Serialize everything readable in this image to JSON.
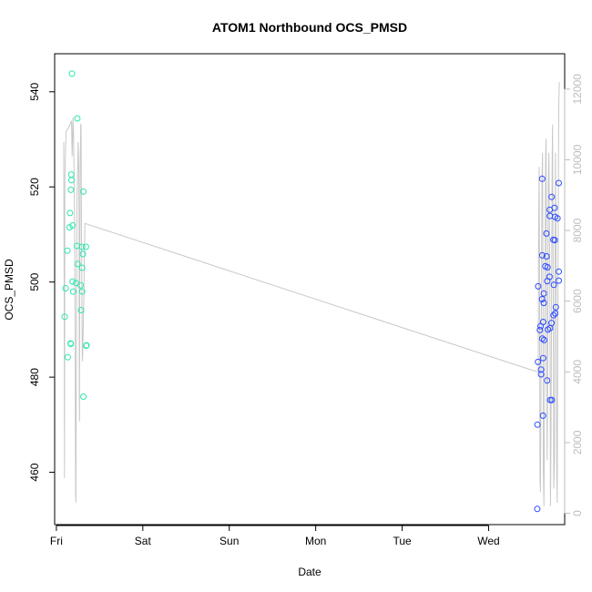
{
  "chart_data": {
    "type": "scatter",
    "title": "ATOM1 Northbound OCS_PMSD",
    "xlabel": "Date",
    "ylabel": "OCS_PMSD",
    "x_ticks": [
      "Fri",
      "Sat",
      "Sun",
      "Mon",
      "Tue",
      "Wed"
    ],
    "x_range_days": [
      -0.02,
      5.88
    ],
    "ylim": [
      449,
      548
    ],
    "y_ticks": [
      460,
      480,
      500,
      520,
      540
    ],
    "y2lim": [
      -320,
      13000
    ],
    "y2_ticks": [
      0,
      2000,
      4000,
      6000,
      8000,
      10000,
      12000
    ],
    "grid": false,
    "colors": {
      "series_fri": "#2ee6b0",
      "series_wed": "#2b4bff",
      "overlay": "#c8c8c8",
      "right_axis": "#bdbdbd"
    },
    "series": [
      {
        "points": [
          [
            0.18,
            543.8
          ],
          [
            0.242,
            534.4
          ],
          [
            0.172,
            522.6
          ],
          [
            0.175,
            521.4
          ],
          [
            0.168,
            519.4
          ],
          [
            0.313,
            519.0
          ],
          [
            0.188,
            511.9
          ],
          [
            0.158,
            514.5
          ],
          [
            0.152,
            511.5
          ],
          [
            0.237,
            507.6
          ],
          [
            0.342,
            507.4
          ],
          [
            0.298,
            507.4
          ],
          [
            0.128,
            506.6
          ],
          [
            0.308,
            505.9
          ],
          [
            0.247,
            503.8
          ],
          [
            0.297,
            503.0
          ],
          [
            0.188,
            500.1
          ],
          [
            0.281,
            499.3
          ],
          [
            0.227,
            499.8
          ],
          [
            0.194,
            498.0
          ],
          [
            0.108,
            498.7
          ],
          [
            0.298,
            498.0
          ],
          [
            0.286,
            494.1
          ],
          [
            0.096,
            492.7
          ],
          [
            0.166,
            487.0
          ],
          [
            0.164,
            487.1
          ],
          [
            0.349,
            486.7
          ],
          [
            0.346,
            486.6
          ],
          [
            0.132,
            484.2
          ],
          [
            0.313,
            475.9
          ]
        ]
      },
      {
        "points": [
          [
            5.62,
            521.7
          ],
          [
            5.812,
            520.8
          ],
          [
            5.729,
            517.9
          ],
          [
            5.763,
            515.6
          ],
          [
            5.707,
            515.2
          ],
          [
            5.708,
            513.9
          ],
          [
            5.768,
            513.7
          ],
          [
            5.797,
            513.4
          ],
          [
            5.669,
            510.2
          ],
          [
            5.749,
            508.9
          ],
          [
            5.766,
            508.8
          ],
          [
            5.621,
            505.6
          ],
          [
            5.671,
            505.4
          ],
          [
            5.657,
            503.3
          ],
          [
            5.682,
            503.1
          ],
          [
            5.811,
            502.2
          ],
          [
            5.705,
            501.1
          ],
          [
            5.811,
            500.3
          ],
          [
            5.679,
            500.2
          ],
          [
            5.755,
            499.4
          ],
          [
            5.573,
            499.1
          ],
          [
            5.639,
            497.6
          ],
          [
            5.619,
            496.4
          ],
          [
            5.639,
            495.6
          ],
          [
            5.778,
            494.7
          ],
          [
            5.77,
            493.4
          ],
          [
            5.751,
            493.0
          ],
          [
            5.631,
            491.6
          ],
          [
            5.727,
            491.4
          ],
          [
            5.711,
            490.3
          ],
          [
            5.593,
            489.9
          ],
          [
            5.601,
            490.7
          ],
          [
            5.686,
            490.0
          ],
          [
            5.621,
            488.1
          ],
          [
            5.643,
            487.8
          ],
          [
            5.571,
            483.2
          ],
          [
            5.631,
            484.0
          ],
          [
            5.607,
            481.6
          ],
          [
            5.607,
            480.6
          ],
          [
            5.677,
            479.3
          ],
          [
            5.731,
            475.2
          ],
          [
            5.713,
            475.2
          ],
          [
            5.629,
            471.9
          ],
          [
            5.565,
            470.0
          ],
          [
            5.563,
            452.3
          ]
        ]
      }
    ],
    "overlay_line": {
      "points": [
        [
          0.085,
          10500
        ],
        [
          0.086,
          9000
        ],
        [
          0.09,
          6800
        ],
        [
          0.094,
          1000
        ],
        [
          0.098,
          9500
        ],
        [
          0.112,
          10800
        ],
        [
          0.14,
          10900
        ],
        [
          0.175,
          11100
        ],
        [
          0.182,
          10100
        ],
        [
          0.188,
          10600
        ],
        [
          0.192,
          11200
        ],
        [
          0.198,
          10800
        ],
        [
          0.21,
          8600
        ],
        [
          0.216,
          5600
        ],
        [
          0.222,
          500
        ],
        [
          0.226,
          300
        ],
        [
          0.232,
          4600
        ],
        [
          0.238,
          8900
        ],
        [
          0.246,
          9600
        ],
        [
          0.252,
          10500
        ],
        [
          0.258,
          9800
        ],
        [
          0.262,
          8400
        ],
        [
          0.266,
          3200
        ],
        [
          0.268,
          2600
        ],
        [
          0.27,
          5800
        ],
        [
          0.276,
          9900
        ],
        [
          0.282,
          11000
        ],
        [
          0.286,
          11000
        ],
        [
          0.29,
          8300
        ],
        [
          0.292,
          7600
        ],
        [
          0.3,
          4300
        ],
        [
          0.304,
          4500
        ],
        [
          0.318,
          6200
        ],
        [
          0.33,
          8200
        ],
        [
          5.5,
          4050
        ],
        [
          5.574,
          4000
        ],
        [
          5.578,
          7600
        ],
        [
          5.585,
          9800
        ],
        [
          5.59,
          5800
        ],
        [
          5.595,
          1000
        ],
        [
          5.6,
          600
        ],
        [
          5.606,
          3600
        ],
        [
          5.612,
          6800
        ],
        [
          5.618,
          9500
        ],
        [
          5.624,
          10200
        ],
        [
          5.628,
          7400
        ],
        [
          5.633,
          1200
        ],
        [
          5.64,
          200
        ],
        [
          5.648,
          3400
        ],
        [
          5.653,
          7200
        ],
        [
          5.66,
          10100
        ],
        [
          5.665,
          10600
        ],
        [
          5.672,
          4000
        ],
        [
          5.678,
          1500
        ],
        [
          5.684,
          4500
        ],
        [
          5.69,
          9200
        ],
        [
          5.698,
          10200
        ],
        [
          5.706,
          7400
        ],
        [
          5.712,
          3800
        ],
        [
          5.716,
          200
        ],
        [
          5.722,
          2200
        ],
        [
          5.73,
          7000
        ],
        [
          5.735,
          9800
        ],
        [
          5.74,
          11000
        ],
        [
          5.748,
          6000
        ],
        [
          5.754,
          700
        ],
        [
          5.762,
          1500
        ],
        [
          5.768,
          7000
        ],
        [
          5.774,
          10200
        ],
        [
          5.782,
          6200
        ],
        [
          5.788,
          1200
        ],
        [
          5.794,
          300
        ],
        [
          5.8,
          5000
        ],
        [
          5.806,
          8800
        ],
        [
          5.812,
          11500
        ],
        [
          5.818,
          12200
        ]
      ]
    }
  }
}
